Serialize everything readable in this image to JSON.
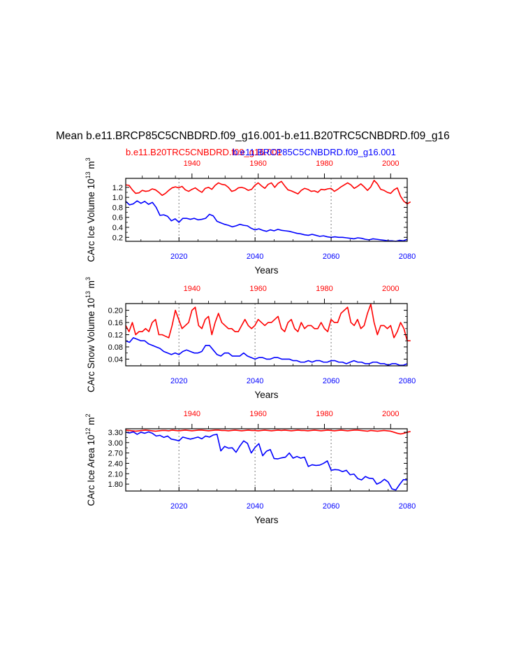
{
  "figure": {
    "title": "Mean b.e11.BRCP85C5CNBDRD.f09_g16.001-b.e11.B20TRC5CNBDRD.f09_g16",
    "legend_red": "b.e11.B20TRC5CNBDRD.f09_g16.001",
    "legend_blue": "b.e11.BRCP85C5CNBDRD.f09_g16.001",
    "red_color": "#ff0000",
    "blue_color": "#0000ff"
  },
  "chart_data": [
    {
      "type": "line",
      "ylabel": "CArc Ice Volume 10",
      "ylabel_sup": "13",
      "ylabel_unit": " m",
      "ylabel_unit_sup": "3",
      "xlabel": "Years",
      "ylim": [
        0.12,
        1.38
      ],
      "yticks": [
        "0.2",
        "0.4",
        "0.6",
        "0.8",
        "1.0",
        "1.2"
      ],
      "ytick_values": [
        0.2,
        0.4,
        0.6,
        0.8,
        1.0,
        1.2
      ],
      "grid_x": [
        2020,
        2040,
        2060
      ],
      "bottom_axis": {
        "range": [
          2006,
          2080
        ],
        "ticks": [
          "2020",
          "2040",
          "2060",
          "2080"
        ],
        "tick_values": [
          2020,
          2040,
          2060,
          2080
        ]
      },
      "top_axis": {
        "range": [
          1920,
          2005
        ],
        "ticks": [
          "1940",
          "1960",
          "1980",
          "2000"
        ],
        "tick_values": [
          1940,
          1960,
          1980,
          2000
        ]
      },
      "series": [
        {
          "axis": "top",
          "x_start": 1920,
          "values": [
            1.25,
            1.24,
            1.15,
            1.08,
            1.09,
            1.14,
            1.12,
            1.13,
            1.17,
            1.15,
            1.1,
            1.04,
            1.08,
            1.14,
            1.19,
            1.21,
            1.19,
            1.22,
            1.15,
            1.12,
            1.16,
            1.19,
            1.14,
            1.1,
            1.18,
            1.2,
            1.16,
            1.24,
            1.29,
            1.26,
            1.25,
            1.2,
            1.12,
            1.14,
            1.19,
            1.2,
            1.18,
            1.14,
            1.16,
            1.24,
            1.29,
            1.23,
            1.18,
            1.26,
            1.29,
            1.2,
            1.28,
            1.32,
            1.23,
            1.15,
            1.13,
            1.1,
            1.07,
            1.14,
            1.18,
            1.16,
            1.12,
            1.13,
            1.1,
            1.16,
            1.15,
            1.17,
            1.18,
            1.12,
            1.16,
            1.21,
            1.25,
            1.29,
            1.25,
            1.18,
            1.22,
            1.27,
            1.21,
            1.14,
            1.21,
            1.34,
            1.27,
            1.16,
            1.14,
            1.1,
            1.08,
            1.15,
            1.19,
            1.02,
            0.92,
            0.87,
            0.91
          ]
        },
        {
          "axis": "bottom",
          "x_start": 2006,
          "values": [
            0.92,
            0.85,
            0.87,
            0.93,
            0.88,
            0.92,
            0.86,
            0.9,
            0.8,
            0.64,
            0.65,
            0.62,
            0.53,
            0.57,
            0.5,
            0.58,
            0.58,
            0.56,
            0.58,
            0.55,
            0.56,
            0.58,
            0.66,
            0.63,
            0.52,
            0.49,
            0.46,
            0.44,
            0.41,
            0.43,
            0.46,
            0.44,
            0.43,
            0.38,
            0.35,
            0.37,
            0.34,
            0.32,
            0.35,
            0.33,
            0.36,
            0.34,
            0.33,
            0.32,
            0.3,
            0.28,
            0.27,
            0.25,
            0.24,
            0.26,
            0.24,
            0.22,
            0.23,
            0.21,
            0.2,
            0.21,
            0.2,
            0.2,
            0.19,
            0.18,
            0.17,
            0.19,
            0.18,
            0.16,
            0.15,
            0.17,
            0.16,
            0.15,
            0.14,
            0.13,
            0.13,
            0.12,
            0.14,
            0.13,
            0.16
          ]
        }
      ]
    },
    {
      "type": "line",
      "ylabel": "CArc Snow Volume 10",
      "ylabel_sup": "13",
      "ylabel_unit": " m",
      "ylabel_unit_sup": "3",
      "xlabel": "Years",
      "ylim": [
        0.018,
        0.222
      ],
      "yticks": [
        "0.04",
        "0.08",
        "0.12",
        "0.16",
        "0.20"
      ],
      "ytick_values": [
        0.04,
        0.08,
        0.12,
        0.16,
        0.2
      ],
      "grid_x": [
        2020,
        2040,
        2060
      ],
      "bottom_axis": {
        "range": [
          2006,
          2080
        ],
        "ticks": [
          "2020",
          "2040",
          "2060",
          "2080"
        ],
        "tick_values": [
          2020,
          2040,
          2060,
          2080
        ]
      },
      "top_axis": {
        "range": [
          1920,
          2005
        ],
        "ticks": [
          "1940",
          "1960",
          "1980",
          "2000"
        ],
        "tick_values": [
          1940,
          1960,
          1980,
          2000
        ]
      },
      "series": [
        {
          "axis": "top",
          "x_start": 1920,
          "values": [
            0.15,
            0.13,
            0.16,
            0.12,
            0.13,
            0.13,
            0.14,
            0.13,
            0.16,
            0.17,
            0.12,
            0.12,
            0.115,
            0.11,
            0.15,
            0.2,
            0.17,
            0.14,
            0.15,
            0.16,
            0.2,
            0.21,
            0.15,
            0.14,
            0.17,
            0.18,
            0.12,
            0.16,
            0.19,
            0.16,
            0.15,
            0.14,
            0.14,
            0.13,
            0.13,
            0.15,
            0.17,
            0.15,
            0.14,
            0.15,
            0.17,
            0.16,
            0.15,
            0.16,
            0.16,
            0.17,
            0.18,
            0.14,
            0.13,
            0.16,
            0.17,
            0.14,
            0.13,
            0.16,
            0.14,
            0.15,
            0.15,
            0.14,
            0.14,
            0.16,
            0.14,
            0.13,
            0.17,
            0.16,
            0.16,
            0.19,
            0.2,
            0.21,
            0.16,
            0.15,
            0.17,
            0.14,
            0.15,
            0.19,
            0.22,
            0.16,
            0.12,
            0.15,
            0.15,
            0.14,
            0.15,
            0.11,
            0.13,
            0.16,
            0.14,
            0.1,
            0.1
          ]
        },
        {
          "axis": "bottom",
          "x_start": 2006,
          "values": [
            0.1,
            0.095,
            0.11,
            0.105,
            0.1,
            0.1,
            0.09,
            0.085,
            0.08,
            0.075,
            0.065,
            0.06,
            0.055,
            0.06,
            0.055,
            0.065,
            0.07,
            0.065,
            0.06,
            0.06,
            0.065,
            0.085,
            0.085,
            0.07,
            0.055,
            0.05,
            0.06,
            0.06,
            0.05,
            0.05,
            0.05,
            0.06,
            0.05,
            0.045,
            0.04,
            0.045,
            0.045,
            0.04,
            0.04,
            0.045,
            0.045,
            0.04,
            0.04,
            0.04,
            0.035,
            0.035,
            0.03,
            0.03,
            0.035,
            0.03,
            0.035,
            0.035,
            0.03,
            0.03,
            0.035,
            0.035,
            0.03,
            0.03,
            0.025,
            0.03,
            0.035,
            0.03,
            0.03,
            0.025,
            0.025,
            0.03,
            0.03,
            0.025,
            0.025,
            0.02,
            0.025,
            0.025,
            0.02,
            0.02,
            0.025
          ]
        }
      ]
    },
    {
      "type": "line",
      "ylabel": "CArc Ice Area 10",
      "ylabel_sup": "12",
      "ylabel_unit": " m",
      "ylabel_unit_sup": "2",
      "xlabel": "Years",
      "ylim": [
        1.6,
        3.4
      ],
      "yticks": [
        "1.80",
        "2.10",
        "2.40",
        "2.70",
        "3.00",
        "3.30"
      ],
      "ytick_values": [
        1.8,
        2.1,
        2.4,
        2.7,
        3.0,
        3.3
      ],
      "grid_x": [
        2020,
        2040,
        2060
      ],
      "bottom_axis": {
        "range": [
          2006,
          2080
        ],
        "ticks": [
          "2020",
          "2040",
          "2060",
          "2080"
        ],
        "tick_values": [
          2020,
          2040,
          2060,
          2080
        ]
      },
      "top_axis": {
        "range": [
          1920,
          2005
        ],
        "ticks": [
          "1940",
          "1960",
          "1980",
          "2000"
        ],
        "tick_values": [
          1940,
          1960,
          1980,
          2000
        ]
      },
      "series": [
        {
          "axis": "top",
          "x_start": 1920,
          "values": [
            3.36,
            3.35,
            3.34,
            3.33,
            3.34,
            3.35,
            3.36,
            3.35,
            3.34,
            3.33,
            3.34,
            3.35,
            3.35,
            3.34,
            3.36,
            3.35,
            3.34,
            3.35,
            3.36,
            3.35,
            3.34,
            3.35,
            3.36,
            3.36,
            3.35,
            3.34,
            3.35,
            3.36,
            3.36,
            3.35,
            3.35,
            3.34,
            3.35,
            3.36,
            3.35,
            3.34,
            3.35,
            3.36,
            3.35,
            3.35,
            3.34,
            3.35,
            3.36,
            3.35,
            3.34,
            3.35,
            3.36,
            3.35,
            3.36,
            3.35,
            3.34,
            3.35,
            3.36,
            3.35,
            3.35,
            3.34,
            3.35,
            3.36,
            3.35,
            3.34,
            3.35,
            3.36,
            3.35,
            3.34,
            3.35,
            3.36,
            3.35,
            3.34,
            3.35,
            3.36,
            3.36,
            3.35,
            3.34,
            3.33,
            3.35,
            3.34,
            3.33,
            3.34,
            3.35,
            3.34,
            3.33,
            3.3,
            3.27,
            3.25,
            3.27,
            3.3,
            3.32
          ]
        },
        {
          "axis": "bottom",
          "x_start": 2006,
          "values": [
            3.3,
            3.28,
            3.31,
            3.24,
            3.3,
            3.27,
            3.31,
            3.27,
            3.19,
            3.21,
            3.15,
            3.19,
            3.1,
            3.08,
            3.05,
            3.16,
            3.13,
            3.1,
            3.13,
            3.16,
            3.11,
            3.19,
            3.16,
            3.22,
            3.24,
            2.76,
            2.89,
            2.84,
            2.85,
            2.72,
            2.9,
            3.05,
            2.98,
            2.7,
            2.86,
            2.97,
            2.62,
            2.75,
            2.8,
            2.54,
            2.53,
            2.56,
            2.58,
            2.7,
            2.55,
            2.6,
            2.55,
            2.58,
            2.31,
            2.36,
            2.34,
            2.35,
            2.4,
            2.47,
            2.2,
            2.22,
            2.21,
            2.16,
            2.2,
            2.07,
            2.09,
            1.96,
            1.92,
            2.02,
            1.97,
            1.96,
            1.8,
            1.85,
            1.94,
            1.86,
            1.66,
            1.63,
            1.79,
            1.93,
            1.92
          ]
        }
      ]
    }
  ]
}
